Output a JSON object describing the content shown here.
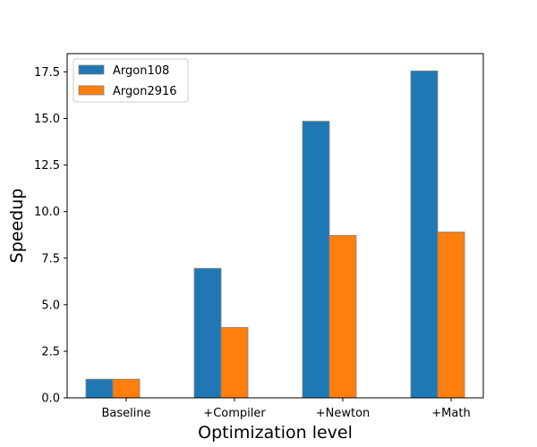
{
  "chart_data": {
    "type": "bar",
    "title": "",
    "xlabel": "Optimization level",
    "ylabel": "Speedup",
    "categories": [
      "Baseline",
      "+Compiler",
      "+Newton",
      "+Math"
    ],
    "series": [
      {
        "name": "Argon108",
        "color": "#1f77b4",
        "values": [
          1.0,
          6.95,
          14.85,
          17.55
        ]
      },
      {
        "name": "Argon2916",
        "color": "#ff7f0e",
        "values": [
          1.0,
          3.78,
          8.72,
          8.9
        ]
      }
    ],
    "ylim": [
      0,
      18.48
    ],
    "yticks": [
      "0.0",
      "2.5",
      "5.0",
      "7.5",
      "10.0",
      "12.5",
      "15.0",
      "17.5"
    ],
    "grid": false,
    "legend_position": "top-left",
    "bar_edge_color": "#808080"
  }
}
